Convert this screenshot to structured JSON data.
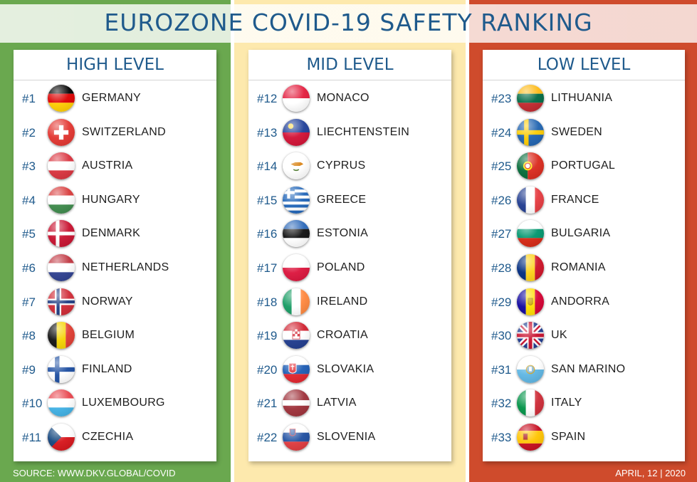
{
  "title": "EUROZONE COVID-19 SAFETY RANKING",
  "columns": [
    {
      "heading": "HIGH LEVEL",
      "color": "#6aa84f",
      "rows": [
        {
          "rank": "#1",
          "country": "GERMANY",
          "flag": "germany-flag-icon"
        },
        {
          "rank": "#2",
          "country": "SWITZERLAND",
          "flag": "switzerland-flag-icon"
        },
        {
          "rank": "#3",
          "country": "AUSTRIA",
          "flag": "austria-flag-icon"
        },
        {
          "rank": "#4",
          "country": "HUNGARY",
          "flag": "hungary-flag-icon"
        },
        {
          "rank": "#5",
          "country": "DENMARK",
          "flag": "denmark-flag-icon"
        },
        {
          "rank": "#6",
          "country": "NETHERLANDS",
          "flag": "netherlands-flag-icon"
        },
        {
          "rank": "#7",
          "country": "NORWAY",
          "flag": "norway-flag-icon"
        },
        {
          "rank": "#8",
          "country": "BELGIUM",
          "flag": "belgium-flag-icon"
        },
        {
          "rank": "#9",
          "country": "FINLAND",
          "flag": "finland-flag-icon"
        },
        {
          "rank": "#10",
          "country": "LUXEMBOURG",
          "flag": "luxembourg-flag-icon"
        },
        {
          "rank": "#11",
          "country": "CZECHIA",
          "flag": "czechia-flag-icon"
        }
      ]
    },
    {
      "heading": "MID LEVEL",
      "color": "#fde9ad",
      "rows": [
        {
          "rank": "#12",
          "country": "MONACO",
          "flag": "monaco-flag-icon"
        },
        {
          "rank": "#13",
          "country": "LIECHTENSTEIN",
          "flag": "liechtenstein-flag-icon"
        },
        {
          "rank": "#14",
          "country": "CYPRUS",
          "flag": "cyprus-flag-icon"
        },
        {
          "rank": "#15",
          "country": "GREECE",
          "flag": "greece-flag-icon"
        },
        {
          "rank": "#16",
          "country": "ESTONIA",
          "flag": "estonia-flag-icon"
        },
        {
          "rank": "#17",
          "country": "POLAND",
          "flag": "poland-flag-icon"
        },
        {
          "rank": "#18",
          "country": "IRELAND",
          "flag": "ireland-flag-icon"
        },
        {
          "rank": "#19",
          "country": "CROATIA",
          "flag": "croatia-flag-icon"
        },
        {
          "rank": "#20",
          "country": "SLOVAKIA",
          "flag": "slovakia-flag-icon"
        },
        {
          "rank": "#21",
          "country": "LATVIA",
          "flag": "latvia-flag-icon"
        },
        {
          "rank": "#22",
          "country": "SLOVENIA",
          "flag": "slovenia-flag-icon"
        }
      ]
    },
    {
      "heading": "LOW LEVEL",
      "color": "#cf4b2c",
      "rows": [
        {
          "rank": "#23",
          "country": "LITHUANIA",
          "flag": "lithuania-flag-icon"
        },
        {
          "rank": "#24",
          "country": "SWEDEN",
          "flag": "sweden-flag-icon"
        },
        {
          "rank": "#25",
          "country": "PORTUGAL",
          "flag": "portugal-flag-icon"
        },
        {
          "rank": "#26",
          "country": "FRANCE",
          "flag": "france-flag-icon"
        },
        {
          "rank": "#27",
          "country": "BULGARIA",
          "flag": "bulgaria-flag-icon"
        },
        {
          "rank": "#28",
          "country": "ROMANIA",
          "flag": "romania-flag-icon"
        },
        {
          "rank": "#29",
          "country": "ANDORRA",
          "flag": "andorra-flag-icon"
        },
        {
          "rank": "#30",
          "country": "UK",
          "flag": "uk-flag-icon"
        },
        {
          "rank": "#31",
          "country": "SAN MARINO",
          "flag": "san-marino-flag-icon"
        },
        {
          "rank": "#32",
          "country": "ITALY",
          "flag": "italy-flag-icon"
        },
        {
          "rank": "#33",
          "country": "SPAIN",
          "flag": "spain-flag-icon"
        }
      ]
    }
  ],
  "footer": {
    "source": "SOURCE: WWW.DKV.GLOBAL/COVID",
    "date": "APRIL, 12 | 2020"
  }
}
